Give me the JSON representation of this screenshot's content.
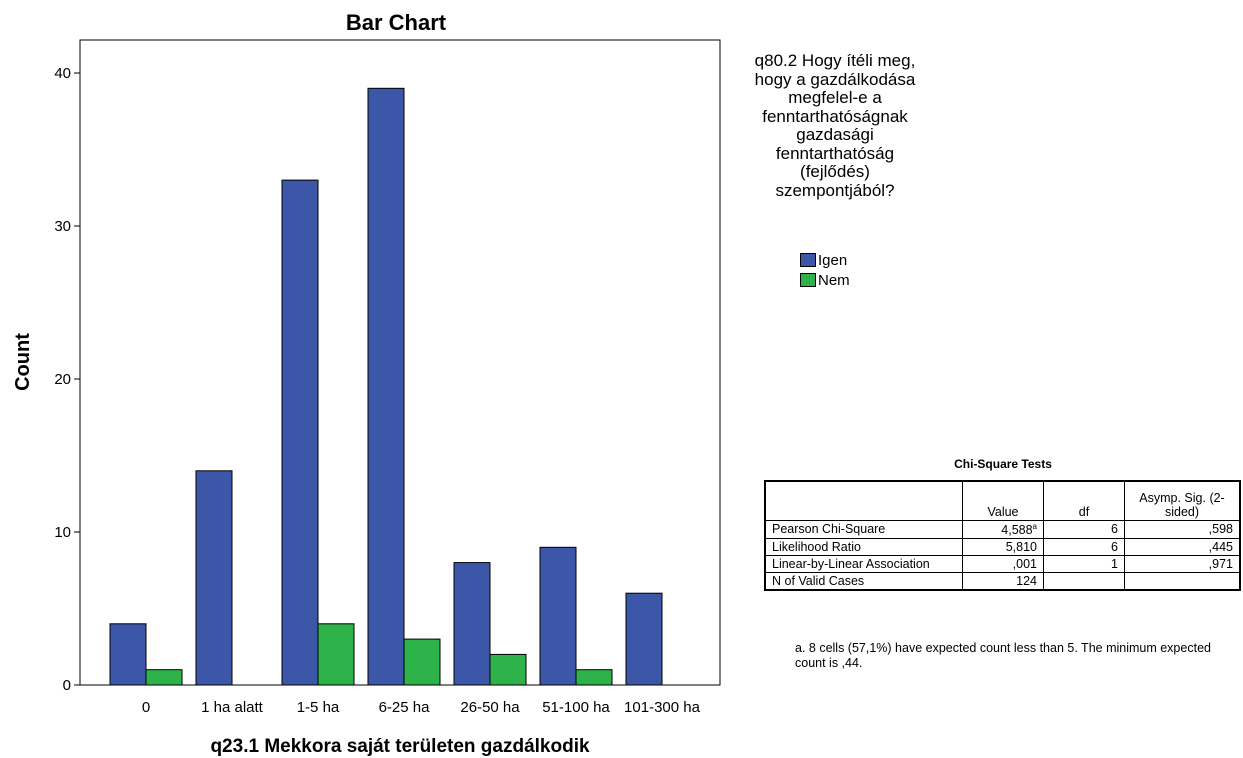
{
  "chart_data": {
    "type": "bar",
    "title": "Bar Chart",
    "xlabel": "q23.1 Mekkora saját területen gazdálkodik",
    "ylabel": "Count",
    "categories": [
      "0",
      "1 ha alatt",
      "1-5 ha",
      "6-25 ha",
      "26-50 ha",
      "51-100 ha",
      "101-300 ha"
    ],
    "series": [
      {
        "name": "Igen",
        "color": "#3c56a8",
        "values": [
          4,
          14,
          33,
          39,
          8,
          9,
          6
        ]
      },
      {
        "name": "Nem",
        "color": "#2eb24a",
        "values": [
          1,
          0,
          4,
          3,
          2,
          1,
          0
        ]
      }
    ],
    "ylim": [
      0,
      42
    ],
    "yticks": [
      0,
      10,
      20,
      30,
      40
    ],
    "legend_title": "q80.2 Hogy ítéli meg, hogy a gazdálkodása megfelel-e a fenntarthatóságnak gazdasági fenntarthatóság (fejlődés) szempontjából?",
    "legend_position": "right",
    "grid": false
  },
  "chi_square": {
    "title": "Chi-Square Tests",
    "headers": [
      "",
      "Value",
      "df",
      "Asymp. Sig. (2-sided)"
    ],
    "rows": [
      {
        "label": "Pearson Chi-Square",
        "value": "4,588",
        "sup": "a",
        "df": "6",
        "sig": ",598"
      },
      {
        "label": "Likelihood Ratio",
        "value": "5,810",
        "sup": "",
        "df": "6",
        "sig": ",445"
      },
      {
        "label": "Linear-by-Linear Association",
        "value": ",001",
        "sup": "",
        "df": "1",
        "sig": ",971"
      },
      {
        "label": "N of Valid Cases",
        "value": "124",
        "sup": "",
        "df": "",
        "sig": ""
      }
    ],
    "footnote": "a. 8 cells (57,1%) have expected count less than 5. The minimum expected count is ,44."
  }
}
